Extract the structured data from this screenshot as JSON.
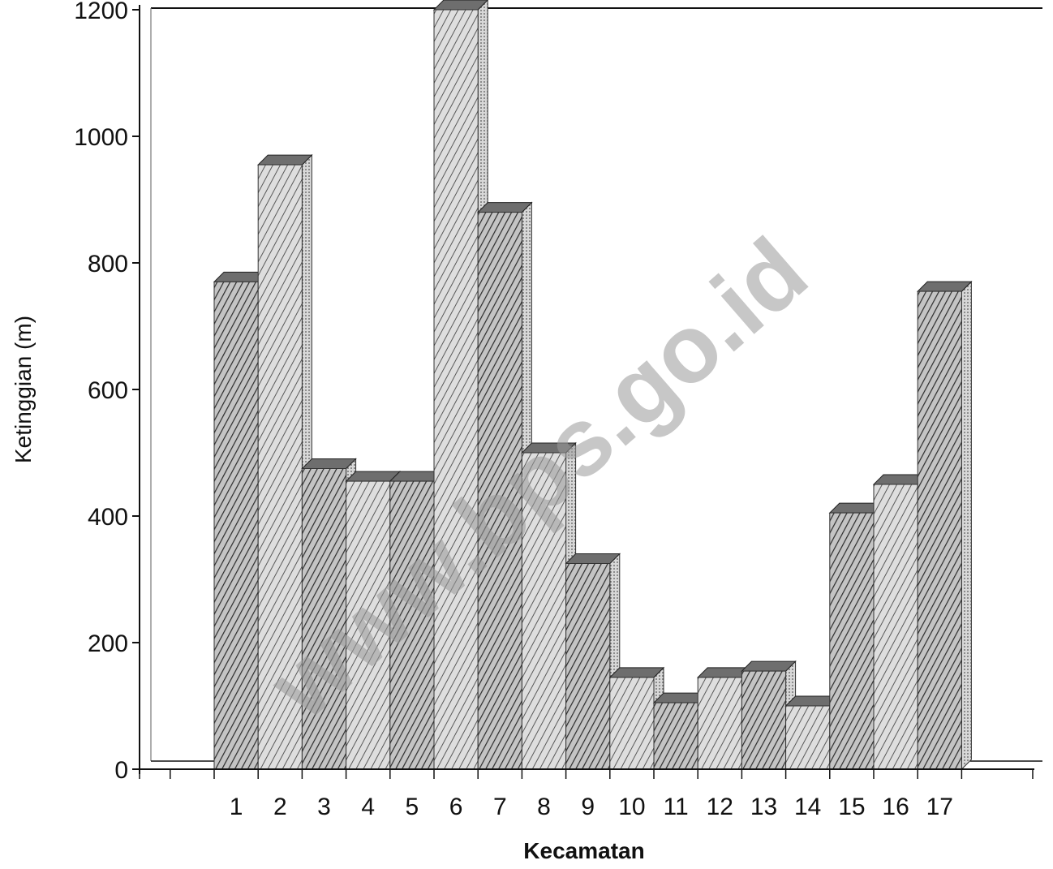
{
  "watermark": "www.bps.go.id",
  "chart_data": {
    "type": "bar",
    "categories": [
      "1",
      "2",
      "3",
      "4",
      "5",
      "6",
      "7",
      "8",
      "9",
      "10",
      "11",
      "12",
      "13",
      "14",
      "15",
      "16",
      "17"
    ],
    "values": [
      770,
      955,
      475,
      455,
      455,
      1200,
      880,
      500,
      325,
      145,
      105,
      145,
      155,
      100,
      405,
      450,
      755
    ],
    "xlabel": "Kecamatan",
    "ylabel": "Ketinggian (m)",
    "ylim": [
      0,
      1200
    ],
    "yticks": [
      0,
      200,
      400,
      600,
      800,
      1000,
      1200
    ],
    "grid": false,
    "legend": "none",
    "colors": {
      "bar_fill": "#bdbdbd",
      "hatch": "#2b2b2b",
      "bar_top": "#5a5a5a",
      "axis": "#111111"
    }
  }
}
